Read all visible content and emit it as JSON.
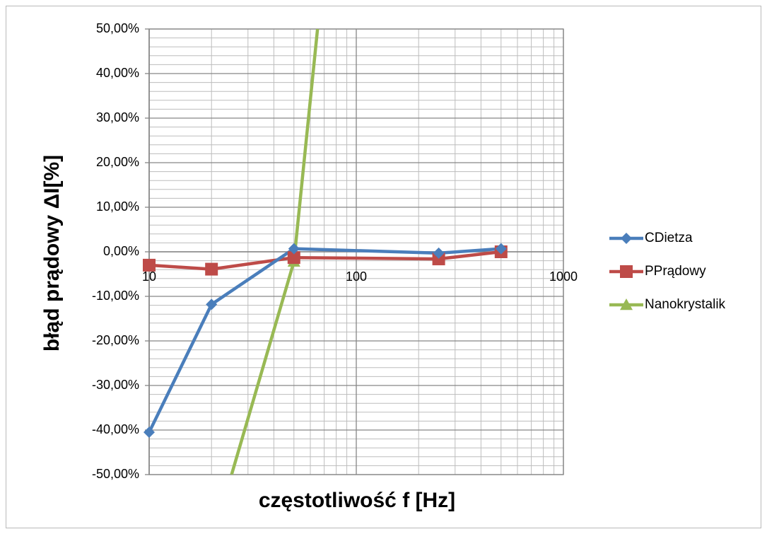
{
  "chart_data": {
    "type": "line",
    "xlabel": "częstotliwość f [Hz]",
    "ylabel": "błąd prądowy ΔI[%]",
    "x_scale": "log",
    "xlim": [
      10,
      1000
    ],
    "ylim": [
      -0.5,
      0.5
    ],
    "y_tick_values": [
      0.5,
      0.4,
      0.3,
      0.2,
      0.1,
      0.0,
      -0.1,
      -0.2,
      -0.3,
      -0.4,
      -0.5
    ],
    "y_tick_labels": [
      "50,00%",
      "40,00%",
      "30,00%",
      "20,00%",
      "10,00%",
      "0,00%",
      "-10,00%",
      "-20,00%",
      "-30,00%",
      "-40,00%",
      "-50,00%"
    ],
    "x_tick_values": [
      10,
      100,
      1000
    ],
    "x_tick_labels": [
      "10",
      "100",
      "1000"
    ],
    "grid": true,
    "legend_position": "right",
    "series": [
      {
        "name": "CDietza",
        "color": "#4a7ebb",
        "marker": "diamond",
        "x": [
          10,
          20,
          50,
          250,
          500
        ],
        "y": [
          -0.405,
          -0.118,
          0.007,
          -0.003,
          0.007
        ]
      },
      {
        "name": "PPrądowy",
        "color": "#be4b48",
        "marker": "square",
        "x": [
          10,
          20,
          50,
          250,
          500
        ],
        "y": [
          -0.03,
          -0.039,
          -0.013,
          -0.016,
          0.0
        ]
      },
      {
        "name": "Nanokrystalik",
        "color": "#98b954",
        "marker": "triangle",
        "x": [
          25,
          50,
          65
        ],
        "y": [
          -0.5,
          -0.022,
          0.5
        ]
      }
    ]
  }
}
